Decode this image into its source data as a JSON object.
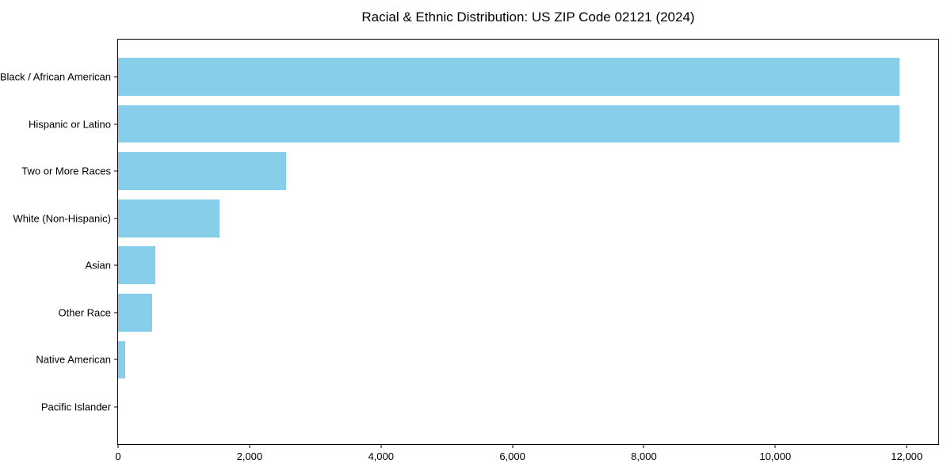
{
  "chart_data": {
    "type": "bar",
    "orientation": "horizontal",
    "title": "Racial & Ethnic Distribution: US ZIP Code 02121 (2024)",
    "categories": [
      "Black / African American",
      "Hispanic or Latino",
      "Two or More Races",
      "White (Non-Hispanic)",
      "Asian",
      "Other Race",
      "Native American",
      "Pacific Islander"
    ],
    "values": [
      11890,
      11890,
      2560,
      1545,
      565,
      515,
      110,
      0
    ],
    "xlabel": "",
    "ylabel": "",
    "xlim": [
      0,
      12480
    ],
    "xticks": [
      0,
      2000,
      4000,
      6000,
      8000,
      10000,
      12000
    ],
    "xtick_labels": [
      "0",
      "2,000",
      "4,000",
      "6,000",
      "8,000",
      "10,000",
      "12,000"
    ],
    "bar_color": "#87CEEB",
    "axis_color": "#000000",
    "text_color": "#000000",
    "background_color": "#FFFFFF",
    "grid": false,
    "legend": null
  }
}
